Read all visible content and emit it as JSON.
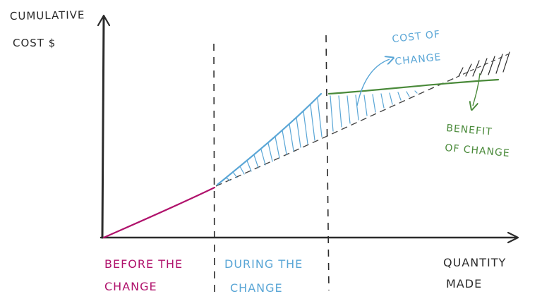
{
  "y_axis_label_line1": "CUMULATIVE",
  "y_axis_label_line2": "COST $",
  "x_axis_label_line1": "QUANTITY",
  "x_axis_label_line2": "MADE",
  "phase_before_line1": "BEFORE THE",
  "phase_before_line2": "CHANGE",
  "phase_during_line1": "DURING THE",
  "phase_during_line2": "CHANGE",
  "callout_cost_line1": "COST OF",
  "callout_cost_line2": "CHANGE",
  "callout_benefit_line1": "BENEFIT",
  "callout_benefit_line2": "OF CHANGE",
  "colors": {
    "axis": "#2b2b2b",
    "before": "#b0126c",
    "during": "#5aa6d6",
    "after": "#4a8a3a",
    "baseline": "#444444"
  }
}
